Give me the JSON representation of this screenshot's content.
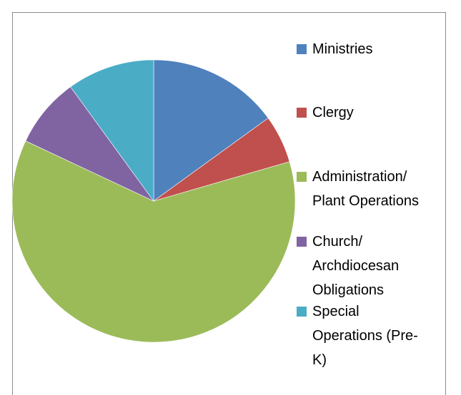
{
  "chart_data": {
    "type": "pie",
    "title": "",
    "categories": [
      "Ministries",
      "Clergy",
      "Administration/\nPlant Operations",
      "Church/\nArchdiocesan\nObligations",
      "Special\nOperations (Pre-\nK)"
    ],
    "values": [
      15,
      5.5,
      61.5,
      8,
      10
    ],
    "colors": [
      "#4F81BD",
      "#C0504D",
      "#9BBB59",
      "#8064A2",
      "#4BACC6"
    ],
    "start_angle_deg": 0,
    "direction": "clockwise",
    "legend_position": "right",
    "value_unit": "percent (estimated)"
  }
}
